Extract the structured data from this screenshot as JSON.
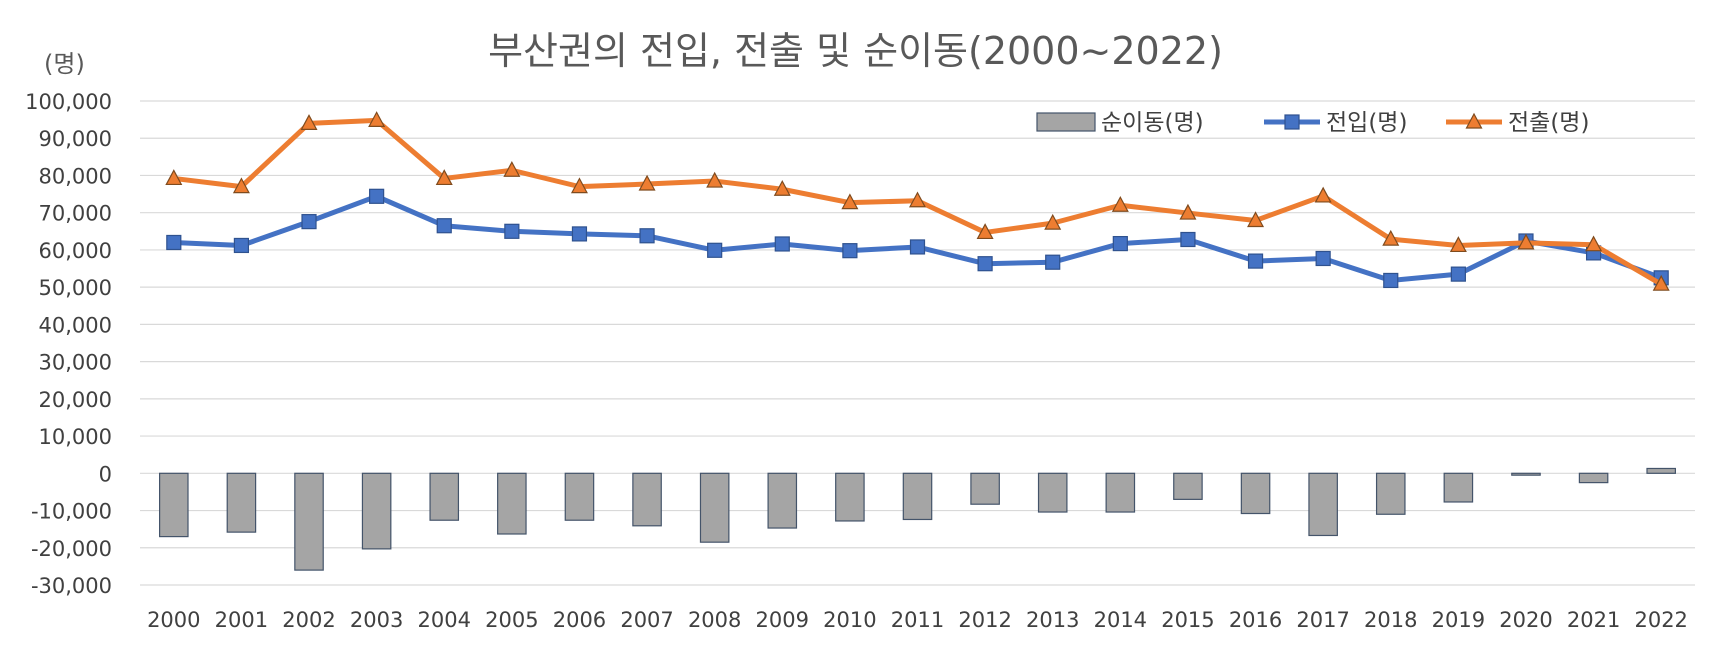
{
  "chart_data": {
    "type": "bar+line",
    "title": "부산권의 전입, 전출 및 순이동(2000~2022)",
    "unit_label": "(명)",
    "categories": [
      "2000",
      "2001",
      "2002",
      "2003",
      "2004",
      "2005",
      "2006",
      "2007",
      "2008",
      "2009",
      "2010",
      "2011",
      "2012",
      "2013",
      "2014",
      "2015",
      "2016",
      "2017",
      "2018",
      "2019",
      "2020",
      "2021",
      "2022"
    ],
    "series": [
      {
        "name": "순이동(명)",
        "type": "bar",
        "color": "#A5A5A5",
        "values": [
          -17000,
          -15800,
          -26000,
          -20300,
          -12600,
          -16300,
          -12600,
          -14100,
          -18500,
          -14700,
          -12800,
          -12400,
          -8300,
          -10400,
          -10400,
          -7000,
          -10800,
          -16700,
          -11000,
          -7700,
          -500,
          -2500,
          1300
        ]
      },
      {
        "name": "전입(명)",
        "type": "line",
        "marker": "square",
        "color": "#4472C4",
        "values": [
          62000,
          61200,
          67600,
          74400,
          66500,
          65000,
          64300,
          63800,
          59900,
          61600,
          59800,
          60800,
          56300,
          56700,
          61700,
          62800,
          57000,
          57700,
          51800,
          53500,
          62400,
          59200,
          52500
        ]
      },
      {
        "name": "전출(명)",
        "type": "line",
        "marker": "triangle",
        "color": "#ED7D31",
        "values": [
          79200,
          77000,
          94000,
          94800,
          79200,
          81400,
          77000,
          77700,
          78500,
          76300,
          72700,
          73200,
          64700,
          67200,
          72000,
          69900,
          67900,
          74500,
          62900,
          61200,
          61900,
          61400,
          50800
        ]
      }
    ],
    "y_ticks": [
      "100,000",
      "90,000",
      "80,000",
      "70,000",
      "60,000",
      "50,000",
      "40,000",
      "30,000",
      "20,000",
      "10,000",
      "0",
      "-10,000",
      "-20,000",
      "-30,000"
    ],
    "ylim": [
      -30000,
      100000
    ],
    "grid": true,
    "legend_position": "top-right"
  }
}
